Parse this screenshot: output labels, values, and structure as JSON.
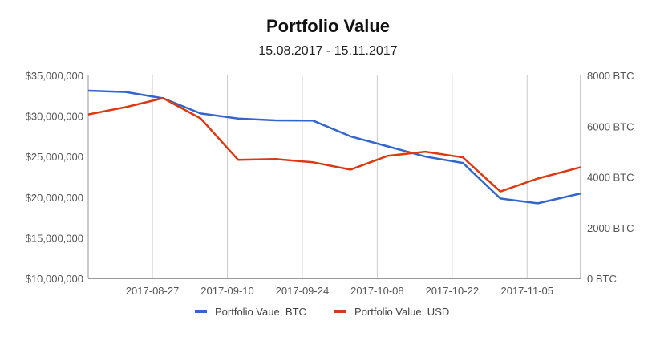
{
  "chart_data": {
    "type": "line",
    "title": "Portfolio Value",
    "subtitle": "15.08.2017 - 15.11.2017",
    "x": [
      "2017-08-15",
      "2017-08-22",
      "2017-08-29",
      "2017-09-05",
      "2017-09-12",
      "2017-09-19",
      "2017-09-26",
      "2017-10-03",
      "2017-10-10",
      "2017-10-17",
      "2017-10-24",
      "2017-10-31",
      "2017-11-07",
      "2017-11-15"
    ],
    "x_ticks": [
      "2017-08-27",
      "2017-09-10",
      "2017-09-24",
      "2017-10-08",
      "2017-10-22",
      "2017-11-05"
    ],
    "y_left": {
      "ticks": [
        "$10,000,000",
        "$15,000,000",
        "$20,000,000",
        "$25,000,000",
        "$30,000,000",
        "$35,000,000"
      ],
      "ylim": [
        10000000,
        35000000
      ]
    },
    "y_right": {
      "ticks": [
        "0 BTC",
        "2000 BTC",
        "4000 BTC",
        "6000 BTC",
        "8000 BTC"
      ],
      "ylim": [
        0,
        8000
      ]
    },
    "grid": "vertical",
    "legend_position": "bottom",
    "series": [
      {
        "name": "Portfolio Vaue, BTC",
        "axis": "right",
        "color": "#3366cc",
        "values": [
          7400,
          7350,
          7100,
          6500,
          6300,
          6230,
          6220,
          5600,
          5200,
          4800,
          4550,
          3150,
          2960,
          3350
        ]
      },
      {
        "name": "Portfolio Value, USD",
        "axis": "left",
        "color": "#dc3912",
        "values": [
          30200000,
          31100000,
          32200000,
          29700000,
          24600000,
          24700000,
          24300000,
          23400000,
          25100000,
          25600000,
          24900000,
          20700000,
          22300000,
          23700000
        ]
      }
    ]
  }
}
